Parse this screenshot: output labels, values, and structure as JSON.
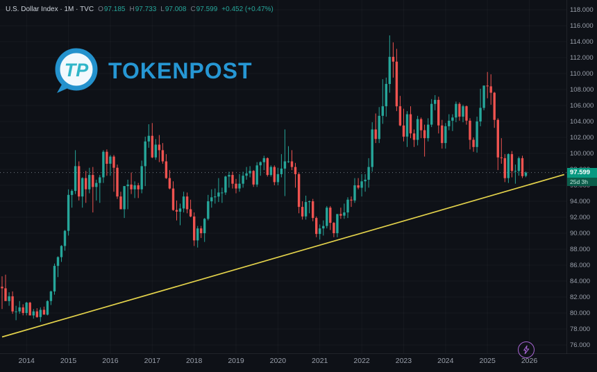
{
  "header": {
    "symbol_title": "U.S. Dollar Index · 1M · TVC",
    "ohlc": {
      "o_label": "O",
      "o": "97.185",
      "h_label": "H",
      "h": "97.733",
      "l_label": "L",
      "l": "97.008",
      "c_label": "C",
      "c": "97.599",
      "change": "+0.452 (+0.47%)"
    }
  },
  "watermark": {
    "brand": "TOKENPOST",
    "monogram": "TP"
  },
  "colors": {
    "background": "#0e1117",
    "up": "#26a69a",
    "down": "#ef5350",
    "trendline": "#e3d24b",
    "brand_blue": "#2697d4",
    "brand_teal": "#30b6c9",
    "boost_purple": "#a966d6",
    "last_price_bg": "#089981",
    "countdown_bg": "#0c5c4a",
    "axis_text": "#9aa0ab"
  },
  "chart_data": {
    "type": "candlestick",
    "title": "U.S. Dollar Index",
    "interval": "1M",
    "exchange": "TVC",
    "x_start_month": "2013-06",
    "ylim": [
      76,
      118
    ],
    "price_step": 2,
    "years": [
      "2014",
      "2015",
      "2016",
      "2017",
      "2018",
      "2019",
      "2020",
      "2021",
      "2022",
      "2023",
      "2024",
      "2025",
      "2026"
    ],
    "first_year_candle_index": 7,
    "last_price": 97.599,
    "last_price_label": "97.599",
    "countdown": "25d 3h",
    "trendline": {
      "i1": 0,
      "p1": 77.0,
      "i2": 161,
      "p2": 97.35
    },
    "legend_position": "top-left",
    "grid": "faint",
    "candles": [
      [
        83.3,
        84.6,
        80.5,
        83.1
      ],
      [
        83.1,
        84.8,
        81.6,
        81.5
      ],
      [
        81.5,
        82.6,
        80.9,
        82.1
      ],
      [
        82.1,
        82.7,
        79.9,
        80.2
      ],
      [
        80.2,
        80.9,
        79.1,
        80.2
      ],
      [
        80.2,
        81.5,
        79.9,
        80.7
      ],
      [
        80.7,
        81.1,
        79.7,
        80.0
      ],
      [
        80.0,
        81.4,
        79.7,
        81.3
      ],
      [
        81.3,
        81.4,
        79.9,
        79.7
      ],
      [
        79.7,
        80.5,
        79.3,
        80.2
      ],
      [
        80.2,
        80.6,
        79.4,
        79.5
      ],
      [
        79.5,
        80.7,
        78.9,
        80.4
      ],
      [
        80.4,
        80.8,
        79.8,
        79.8
      ],
      [
        79.8,
        81.6,
        79.7,
        81.5
      ],
      [
        81.5,
        82.8,
        81.0,
        82.7
      ],
      [
        82.7,
        86.2,
        82.3,
        85.9
      ],
      [
        85.9,
        87.1,
        84.5,
        87.0
      ],
      [
        87.0,
        88.5,
        86.4,
        88.4
      ],
      [
        88.4,
        90.4,
        87.8,
        90.3
      ],
      [
        90.3,
        95.5,
        89.7,
        94.8
      ],
      [
        94.8,
        95.5,
        93.2,
        95.3
      ],
      [
        95.3,
        100.4,
        94.9,
        98.4
      ],
      [
        98.4,
        99.0,
        94.1,
        94.6
      ],
      [
        94.6,
        97.0,
        93.2,
        96.9
      ],
      [
        96.9,
        97.8,
        93.8,
        95.5
      ],
      [
        95.5,
        98.2,
        95.0,
        97.3
      ],
      [
        97.3,
        98.3,
        92.6,
        95.8
      ],
      [
        95.8,
        96.7,
        94.1,
        96.3
      ],
      [
        96.3,
        97.3,
        93.8,
        97.0
      ],
      [
        97.0,
        100.4,
        96.3,
        100.2
      ],
      [
        100.2,
        100.5,
        97.2,
        98.7
      ],
      [
        98.7,
        99.8,
        97.2,
        99.6
      ],
      [
        99.6,
        99.8,
        95.2,
        98.2
      ],
      [
        98.2,
        98.6,
        94.3,
        94.6
      ],
      [
        94.6,
        95.2,
        93.0,
        93.0
      ],
      [
        93.0,
        95.9,
        91.9,
        95.9
      ],
      [
        95.9,
        96.7,
        93.0,
        96.1
      ],
      [
        96.1,
        97.6,
        94.9,
        95.5
      ],
      [
        95.5,
        96.5,
        94.4,
        96.0
      ],
      [
        96.0,
        96.3,
        94.4,
        95.5
      ],
      [
        95.5,
        99.1,
        95.0,
        98.4
      ],
      [
        98.4,
        102.1,
        95.9,
        101.5
      ],
      [
        101.5,
        103.65,
        100.7,
        102.2
      ],
      [
        102.2,
        103.8,
        99.4,
        99.5
      ],
      [
        99.5,
        101.8,
        99.2,
        101.1
      ],
      [
        101.1,
        102.3,
        98.9,
        100.4
      ],
      [
        100.4,
        101.3,
        98.7,
        99.0
      ],
      [
        99.0,
        99.9,
        96.8,
        96.9
      ],
      [
        96.9,
        97.9,
        95.5,
        95.6
      ],
      [
        95.6,
        96.5,
        92.8,
        92.9
      ],
      [
        92.9,
        94.1,
        91.6,
        92.7
      ],
      [
        92.7,
        93.7,
        91.0,
        93.1
      ],
      [
        93.1,
        95.2,
        92.6,
        94.6
      ],
      [
        94.6,
        95.1,
        92.5,
        93.0
      ],
      [
        93.0,
        94.2,
        92.0,
        92.1
      ],
      [
        92.1,
        92.6,
        88.4,
        89.1
      ],
      [
        89.1,
        90.9,
        88.2,
        90.6
      ],
      [
        90.6,
        90.9,
        89.4,
        90.0
      ],
      [
        90.0,
        91.9,
        88.9,
        91.8
      ],
      [
        91.8,
        94.8,
        91.6,
        94.0
      ],
      [
        94.0,
        95.5,
        93.2,
        94.5
      ],
      [
        94.5,
        95.6,
        93.7,
        94.6
      ],
      [
        94.6,
        96.9,
        93.9,
        95.1
      ],
      [
        95.1,
        95.7,
        93.8,
        95.1
      ],
      [
        95.1,
        97.2,
        94.8,
        97.1
      ],
      [
        97.1,
        97.7,
        95.7,
        97.3
      ],
      [
        97.3,
        97.7,
        95.6,
        96.2
      ],
      [
        96.2,
        96.8,
        95.0,
        95.6
      ],
      [
        95.6,
        97.4,
        95.2,
        96.2
      ],
      [
        96.2,
        97.7,
        95.7,
        97.2
      ],
      [
        97.2,
        98.3,
        96.7,
        97.5
      ],
      [
        97.5,
        98.4,
        97.0,
        97.8
      ],
      [
        97.8,
        97.9,
        95.8,
        96.1
      ],
      [
        96.1,
        98.9,
        95.8,
        98.5
      ],
      [
        98.5,
        99.0,
        97.2,
        98.9
      ],
      [
        98.9,
        99.7,
        97.9,
        99.4
      ],
      [
        99.4,
        99.5,
        97.1,
        97.3
      ],
      [
        97.3,
        98.5,
        97.1,
        98.3
      ],
      [
        98.3,
        98.5,
        96.0,
        96.4
      ],
      [
        96.4,
        98.2,
        96.0,
        97.4
      ],
      [
        97.4,
        99.9,
        97.0,
        98.1
      ],
      [
        98.1,
        103.0,
        94.65,
        99.0
      ],
      [
        99.0,
        100.9,
        98.8,
        99.0
      ],
      [
        99.0,
        100.4,
        97.9,
        98.3
      ],
      [
        98.3,
        98.8,
        95.7,
        97.4
      ],
      [
        97.4,
        97.6,
        92.5,
        93.3
      ],
      [
        93.3,
        94.0,
        91.7,
        92.1
      ],
      [
        92.1,
        94.7,
        91.7,
        93.9
      ],
      [
        93.9,
        94.1,
        92.5,
        94.0
      ],
      [
        94.0,
        94.3,
        91.5,
        91.9
      ],
      [
        91.9,
        92.1,
        89.5,
        89.9
      ],
      [
        89.9,
        91.1,
        89.2,
        90.6
      ],
      [
        90.6,
        91.6,
        89.7,
        90.9
      ],
      [
        90.9,
        93.4,
        90.6,
        93.2
      ],
      [
        93.2,
        93.4,
        90.4,
        91.3
      ],
      [
        91.3,
        91.4,
        89.5,
        90.0
      ],
      [
        90.0,
        92.4,
        89.5,
        92.4
      ],
      [
        92.4,
        93.2,
        91.8,
        92.2
      ],
      [
        92.2,
        93.7,
        91.8,
        92.6
      ],
      [
        92.6,
        94.5,
        91.9,
        94.2
      ],
      [
        94.2,
        94.6,
        93.3,
        94.1
      ],
      [
        94.1,
        96.9,
        93.8,
        96.0
      ],
      [
        96.0,
        96.9,
        95.5,
        95.7
      ],
      [
        95.7,
        97.4,
        94.6,
        96.5
      ],
      [
        96.5,
        97.4,
        95.2,
        96.7
      ],
      [
        96.7,
        99.4,
        95.7,
        98.3
      ],
      [
        98.3,
        103.9,
        97.7,
        103.0
      ],
      [
        103.0,
        105.0,
        101.3,
        101.8
      ],
      [
        101.8,
        105.8,
        101.3,
        104.7
      ],
      [
        104.7,
        109.3,
        103.7,
        105.9
      ],
      [
        105.9,
        109.5,
        104.6,
        108.7
      ],
      [
        108.7,
        114.78,
        107.6,
        112.1
      ],
      [
        112.1,
        113.9,
        109.5,
        111.5
      ],
      [
        111.5,
        113.1,
        105.3,
        105.9
      ],
      [
        105.9,
        107.2,
        103.4,
        103.5
      ],
      [
        103.5,
        105.6,
        101.5,
        102.1
      ],
      [
        102.1,
        105.3,
        100.8,
        104.9
      ],
      [
        104.9,
        105.9,
        101.9,
        102.5
      ],
      [
        102.5,
        103.0,
        100.8,
        101.7
      ],
      [
        101.7,
        104.7,
        101.0,
        104.3
      ],
      [
        104.3,
        104.5,
        101.9,
        102.9
      ],
      [
        102.9,
        103.6,
        99.6,
        101.9
      ],
      [
        101.9,
        104.4,
        101.5,
        103.6
      ],
      [
        103.6,
        106.8,
        103.3,
        106.2
      ],
      [
        106.2,
        107.3,
        105.4,
        106.7
      ],
      [
        106.7,
        107.1,
        102.5,
        103.5
      ],
      [
        103.5,
        104.2,
        100.6,
        101.3
      ],
      [
        101.3,
        103.8,
        100.6,
        103.4
      ],
      [
        103.4,
        104.9,
        102.9,
        104.1
      ],
      [
        104.1,
        104.9,
        102.8,
        104.5
      ],
      [
        104.5,
        106.5,
        103.9,
        106.2
      ],
      [
        106.2,
        106.4,
        104.1,
        104.6
      ],
      [
        104.6,
        106.1,
        103.9,
        105.9
      ],
      [
        105.9,
        106.0,
        103.6,
        104.1
      ],
      [
        104.1,
        104.4,
        100.5,
        101.7
      ],
      [
        101.7,
        102.0,
        100.2,
        100.8
      ],
      [
        100.8,
        104.6,
        100.1,
        104.0
      ],
      [
        104.0,
        108.1,
        103.4,
        105.7
      ],
      [
        105.7,
        108.5,
        105.4,
        108.5
      ],
      [
        108.5,
        110.2,
        106.9,
        108.4
      ],
      [
        108.4,
        109.9,
        106.1,
        107.6
      ],
      [
        107.6,
        107.7,
        103.2,
        104.2
      ],
      [
        104.2,
        104.4,
        97.9,
        99.5
      ],
      [
        99.5,
        101.9,
        98.7,
        99.4
      ],
      [
        99.4,
        99.9,
        96.4,
        96.9
      ],
      [
        96.9,
        100.0,
        96.3,
        99.9
      ],
      [
        99.9,
        100.3,
        97.0,
        97.8
      ],
      [
        97.8,
        98.6,
        96.2,
        97.8
      ],
      [
        97.8,
        99.6,
        97.2,
        99.4
      ],
      [
        99.4,
        99.7,
        96.9,
        97.15
      ],
      [
        97.185,
        97.733,
        97.008,
        97.599
      ]
    ]
  },
  "boost": {
    "icon": "lightning-icon"
  }
}
